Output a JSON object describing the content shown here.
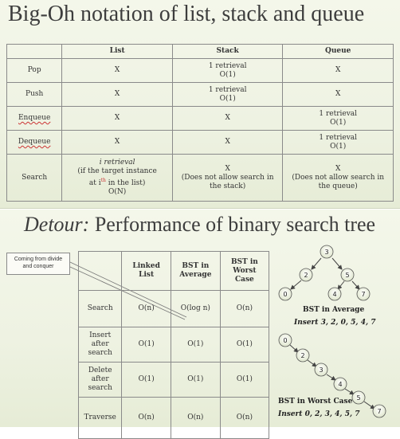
{
  "slide1": {
    "title": "Big-Oh notation of list, stack and queue",
    "headers": [
      "",
      "List",
      "Stack",
      "Queue"
    ],
    "rows": [
      {
        "op": "Pop",
        "list": "X",
        "stack": [
          "1 retrieval",
          "O(1)"
        ],
        "queue": "X"
      },
      {
        "op": "Push",
        "list": "X",
        "stack": [
          "1 retrieval",
          "O(1)"
        ],
        "queue": "X"
      },
      {
        "op": "Enqueue",
        "list": "X",
        "stack": "X",
        "queue": [
          "1 retrieval",
          "O(1)"
        ]
      },
      {
        "op": "Dequeue",
        "list": "X",
        "stack": "X",
        "queue": [
          "1 retrieval",
          "O(1)"
        ]
      },
      {
        "op": "Search",
        "list": [
          "i retrieval",
          "(if the target instance",
          "at i",
          "th",
          " in the list)",
          "O(N)"
        ],
        "stack": [
          "X",
          "(Does not allow search in",
          "the stack)"
        ],
        "queue": [
          "X",
          "(Does not allow search in",
          "the queue)"
        ]
      }
    ]
  },
  "slide2": {
    "title_italic": "Detour:",
    "title_rest": " Performance of binary search tree",
    "callout": [
      "Coming from divide",
      "and conquer"
    ],
    "headers": [
      "",
      "Linked List",
      "BST in Average",
      "BST in Worst Case"
    ],
    "rows": [
      {
        "op": "Search",
        "cells": [
          "O(n)",
          "O(log n)",
          "O(n)"
        ]
      },
      {
        "op": "Insert after search",
        "cells": [
          "O(1)",
          "O(1)",
          "O(1)"
        ]
      },
      {
        "op": "Delete after search",
        "cells": [
          "O(1)",
          "O(1)",
          "O(1)"
        ]
      },
      {
        "op": "Traverse",
        "cells": [
          "O(n)",
          "O(n)",
          "O(n)"
        ]
      }
    ],
    "avg_tree": {
      "nodes": [
        "3",
        "2",
        "5",
        "0",
        "4",
        "7"
      ],
      "caption": "BST in Average",
      "insert": "Insert 3, 2, 0, 5, 4, 7"
    },
    "worst_tree": {
      "nodes": [
        "0",
        "2",
        "3",
        "4",
        "5",
        "7"
      ],
      "caption": "BST in Worst Case",
      "insert": "Insert 0, 2, 3, 4, 5, 7"
    }
  }
}
